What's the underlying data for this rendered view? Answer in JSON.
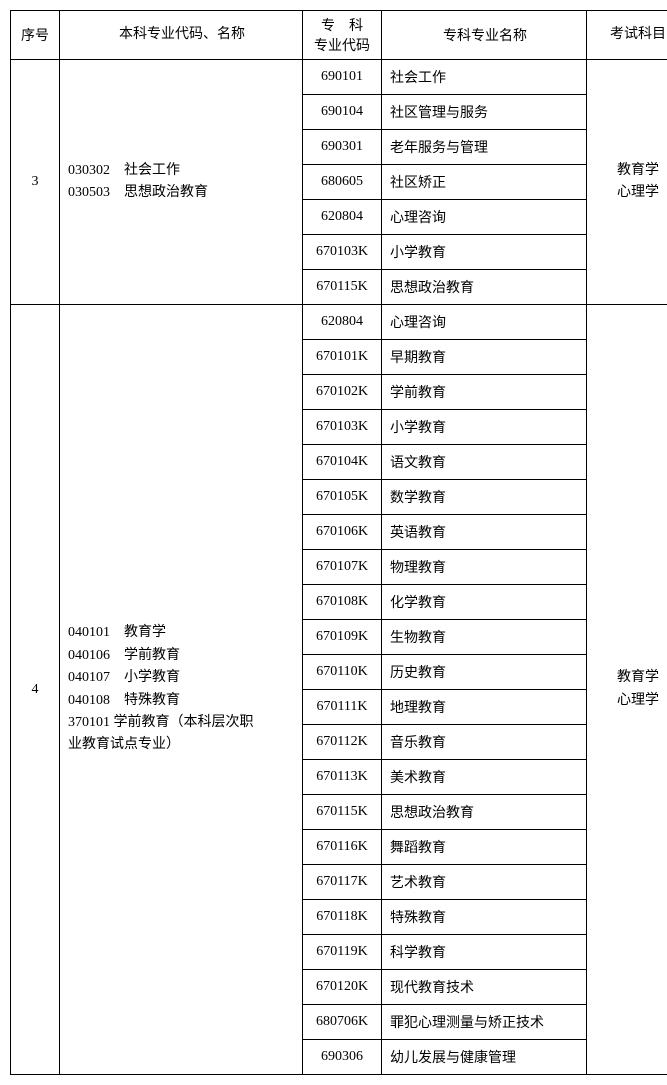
{
  "headers": {
    "seq": "序号",
    "major": "本科专业代码、名称",
    "specCode": "专　科\n专业代码",
    "specName": "专科专业名称",
    "exam": "考试科目"
  },
  "groups": [
    {
      "seq": "3",
      "major": "030302　社会工作\n030503　思想政治教育",
      "exam": "教育学\n心理学",
      "rows": [
        {
          "code": "690101",
          "name": "社会工作"
        },
        {
          "code": "690104",
          "name": "社区管理与服务"
        },
        {
          "code": "690301",
          "name": "老年服务与管理"
        },
        {
          "code": "680605",
          "name": "社区矫正"
        },
        {
          "code": "620804",
          "name": "心理咨询"
        },
        {
          "code": "670103K",
          "name": "小学教育"
        },
        {
          "code": "670115K",
          "name": "思想政治教育"
        }
      ]
    },
    {
      "seq": "4",
      "major": "040101　教育学\n040106　学前教育\n040107　小学教育\n040108　特殊教育\n370101  学前教育（本科层次职\n业教育试点专业）",
      "exam": "教育学\n心理学",
      "rows": [
        {
          "code": "620804",
          "name": "心理咨询"
        },
        {
          "code": "670101K",
          "name": "早期教育"
        },
        {
          "code": "670102K",
          "name": "学前教育"
        },
        {
          "code": "670103K",
          "name": "小学教育"
        },
        {
          "code": "670104K",
          "name": "语文教育"
        },
        {
          "code": "670105K",
          "name": "数学教育"
        },
        {
          "code": "670106K",
          "name": "英语教育"
        },
        {
          "code": "670107K",
          "name": "物理教育"
        },
        {
          "code": "670108K",
          "name": "化学教育"
        },
        {
          "code": "670109K",
          "name": "生物教育"
        },
        {
          "code": "670110K",
          "name": "历史教育"
        },
        {
          "code": "670111K",
          "name": "地理教育"
        },
        {
          "code": "670112K",
          "name": "音乐教育"
        },
        {
          "code": "670113K",
          "name": "美术教育"
        },
        {
          "code": "670115K",
          "name": "思想政治教育"
        },
        {
          "code": "670116K",
          "name": "舞蹈教育"
        },
        {
          "code": "670117K",
          "name": "艺术教育"
        },
        {
          "code": "670118K",
          "name": "特殊教育"
        },
        {
          "code": "670119K",
          "name": "科学教育"
        },
        {
          "code": "670120K",
          "name": "现代教育技术"
        },
        {
          "code": "680706K",
          "name": "罪犯心理测量与矫正技术"
        },
        {
          "code": "690306",
          "name": "幼儿发展与健康管理"
        }
      ]
    }
  ]
}
